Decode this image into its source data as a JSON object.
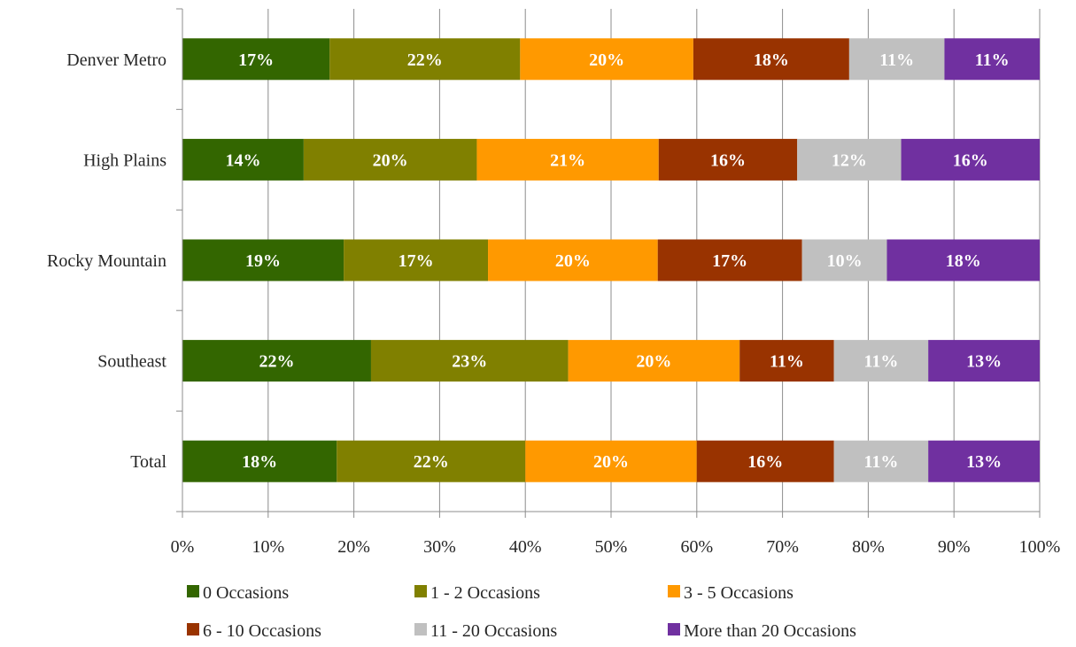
{
  "chart_data": {
    "type": "bar",
    "orientation": "horizontal",
    "stacked": "percent",
    "categories": [
      "Denver Metro",
      "High Plains",
      "Rocky Mountain",
      "Southeast",
      "Total"
    ],
    "series": [
      {
        "name": "0 Occasions",
        "color": "#336600",
        "values": [
          17,
          14,
          19,
          22,
          18
        ],
        "labels": [
          "17%",
          "14%",
          "19%",
          "22%",
          "18%"
        ]
      },
      {
        "name": "1 - 2 Occasions",
        "color": "#808000",
        "values": [
          22,
          20,
          17,
          23,
          22
        ],
        "labels": [
          "22%",
          "20%",
          "17%",
          "23%",
          "22%"
        ]
      },
      {
        "name": "3 - 5 Occasions",
        "color": "#ff9900",
        "values": [
          20,
          21,
          20,
          20,
          20
        ],
        "labels": [
          "20%",
          "21%",
          "20%",
          "20%",
          "20%"
        ]
      },
      {
        "name": "6 - 10 Occasions",
        "color": "#993300",
        "values": [
          18,
          16,
          17,
          11,
          16
        ],
        "labels": [
          "18%",
          "16%",
          "17%",
          "11%",
          "16%"
        ]
      },
      {
        "name": "11 - 20 Occasions",
        "color": "#c0c0c0",
        "values": [
          11,
          12,
          10,
          11,
          11
        ],
        "labels": [
          "11%",
          "12%",
          "10%",
          "11%",
          "11%"
        ]
      },
      {
        "name": "More than 20 Occasions",
        "color": "#7030a0",
        "values": [
          11,
          16,
          18,
          13,
          13
        ],
        "labels": [
          "11%",
          "16%",
          "18%",
          "13%",
          "13%"
        ]
      }
    ],
    "xlim": [
      0,
      100
    ],
    "x_ticks": [
      "0%",
      "10%",
      "20%",
      "30%",
      "40%",
      "50%",
      "60%",
      "70%",
      "80%",
      "90%",
      "100%"
    ],
    "grid": true,
    "legend_position": "bottom",
    "title": "",
    "xlabel": "",
    "ylabel": ""
  }
}
